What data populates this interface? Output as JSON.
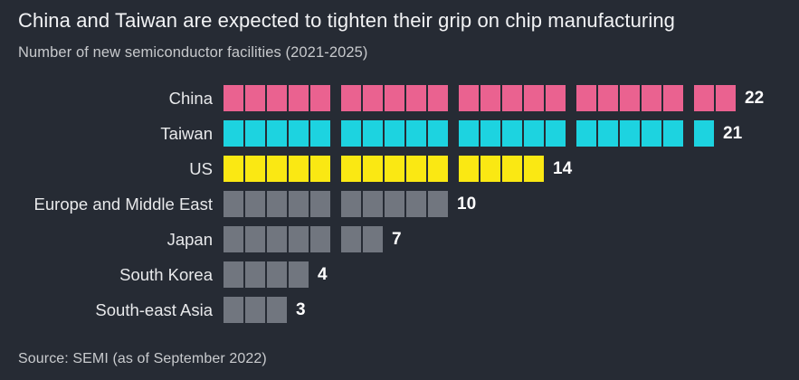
{
  "header": {
    "title": "China and Taiwan are expected to tighten their grip on chip manufacturing",
    "subtitle": "Number of new semiconductor facilities (2021-2025)"
  },
  "footer": {
    "source": "Source: SEMI (as of September 2022)"
  },
  "colors": {
    "background": "#262b34",
    "china": "#ea6290",
    "taiwan": "#1dd3e0",
    "us": "#fae813",
    "other_regions": "#71767f",
    "title_text": "#f2f3f5",
    "subtitle_text": "#c7c9cc",
    "value_text": "#ffffff"
  },
  "chart_data": {
    "type": "bar",
    "style": "horizontal unit-square pictogram, squares grouped in fives",
    "orientation": "horizontal",
    "title": "China and Taiwan are expected to tighten their grip on chip manufacturing",
    "subtitle": "Number of new semiconductor facilities (2021-2025)",
    "source": "Source: SEMI (as of September 2022)",
    "categories": [
      "China",
      "Taiwan",
      "US",
      "Europe and Middle East",
      "Japan",
      "South Korea",
      "South-east Asia"
    ],
    "values": [
      22,
      21,
      14,
      10,
      7,
      4,
      3
    ],
    "bar_colors": [
      "#ea6290",
      "#1dd3e0",
      "#fae813",
      "#71767f",
      "#71767f",
      "#71767f",
      "#71767f"
    ],
    "xlabel": "",
    "ylabel": "",
    "xlim": [
      0,
      22
    ],
    "grid": false,
    "legend": "none",
    "group_size": 5
  }
}
